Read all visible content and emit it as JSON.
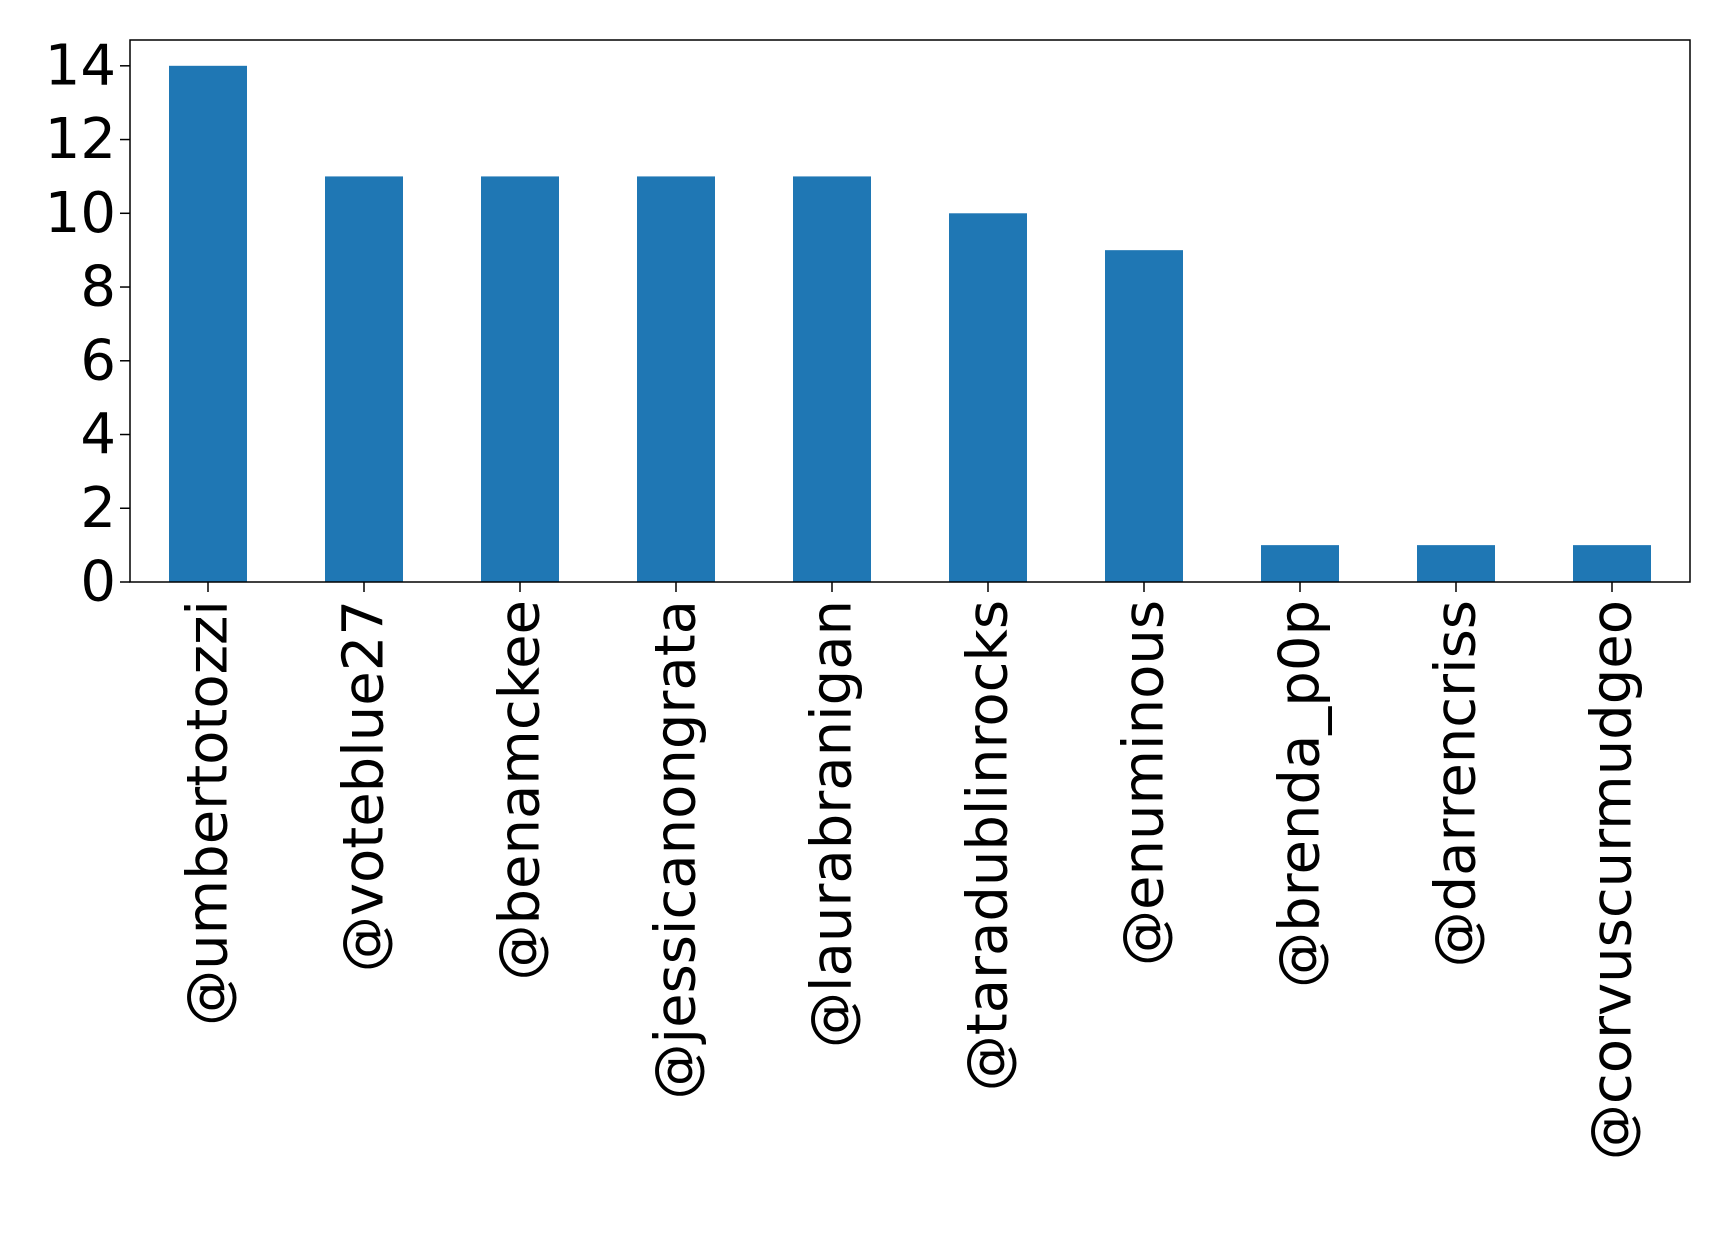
{
  "chart_data": {
    "type": "bar",
    "title": "",
    "xlabel": "",
    "ylabel": "",
    "categories": [
      "@umbertotozzi",
      "@voteblue27",
      "@benamckee",
      "@jessicanongrata",
      "@laurabranigan",
      "@taradublinrocks",
      "@enuminous",
      "@brenda_p0p",
      "@darrencriss",
      "@corvuscurmudgeo"
    ],
    "values": [
      14,
      11,
      11,
      11,
      11,
      10,
      9,
      1,
      1,
      1
    ],
    "ylim": [
      0,
      14.7
    ],
    "yticks": [
      0,
      2,
      4,
      6,
      8,
      10,
      12,
      14
    ],
    "grid": false,
    "legend": "none",
    "bar_color": "#1f77b4"
  }
}
